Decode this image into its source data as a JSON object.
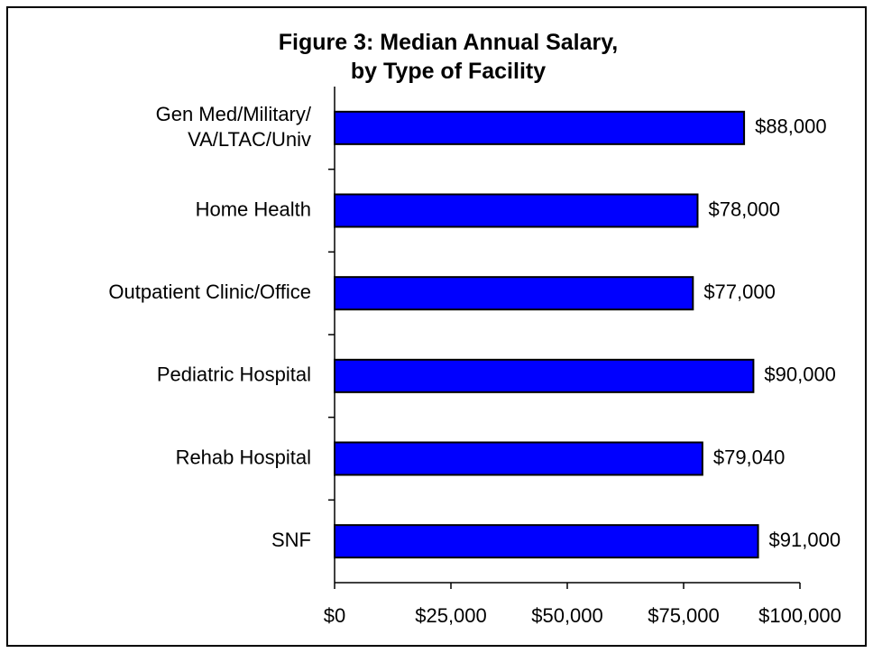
{
  "chart_data": {
    "type": "bar",
    "orientation": "horizontal",
    "title": "Figure 3: Median Annual Salary,\nby Type of Facility",
    "categories": [
      "Gen Med/Military/\nVA/LTAC/Univ",
      "Home Health",
      "Outpatient Clinic/Office",
      "Pediatric Hospital",
      "Rehab Hospital",
      "SNF"
    ],
    "values": [
      88000,
      78000,
      77000,
      90000,
      79040,
      91000
    ],
    "value_labels": [
      "$88,000",
      "$78,000",
      "$77,000",
      "$90,000",
      "$79,040",
      "$91,000"
    ],
    "color": "#0000ff",
    "xlim": [
      0,
      100000
    ],
    "xticks": [
      {
        "value": 0,
        "label": "$0"
      },
      {
        "value": 25000,
        "label": "$25,000"
      },
      {
        "value": 50000,
        "label": "$50,000"
      },
      {
        "value": 75000,
        "label": "$75,000"
      },
      {
        "value": 100000,
        "label": "$100,000"
      }
    ],
    "grid": false
  }
}
